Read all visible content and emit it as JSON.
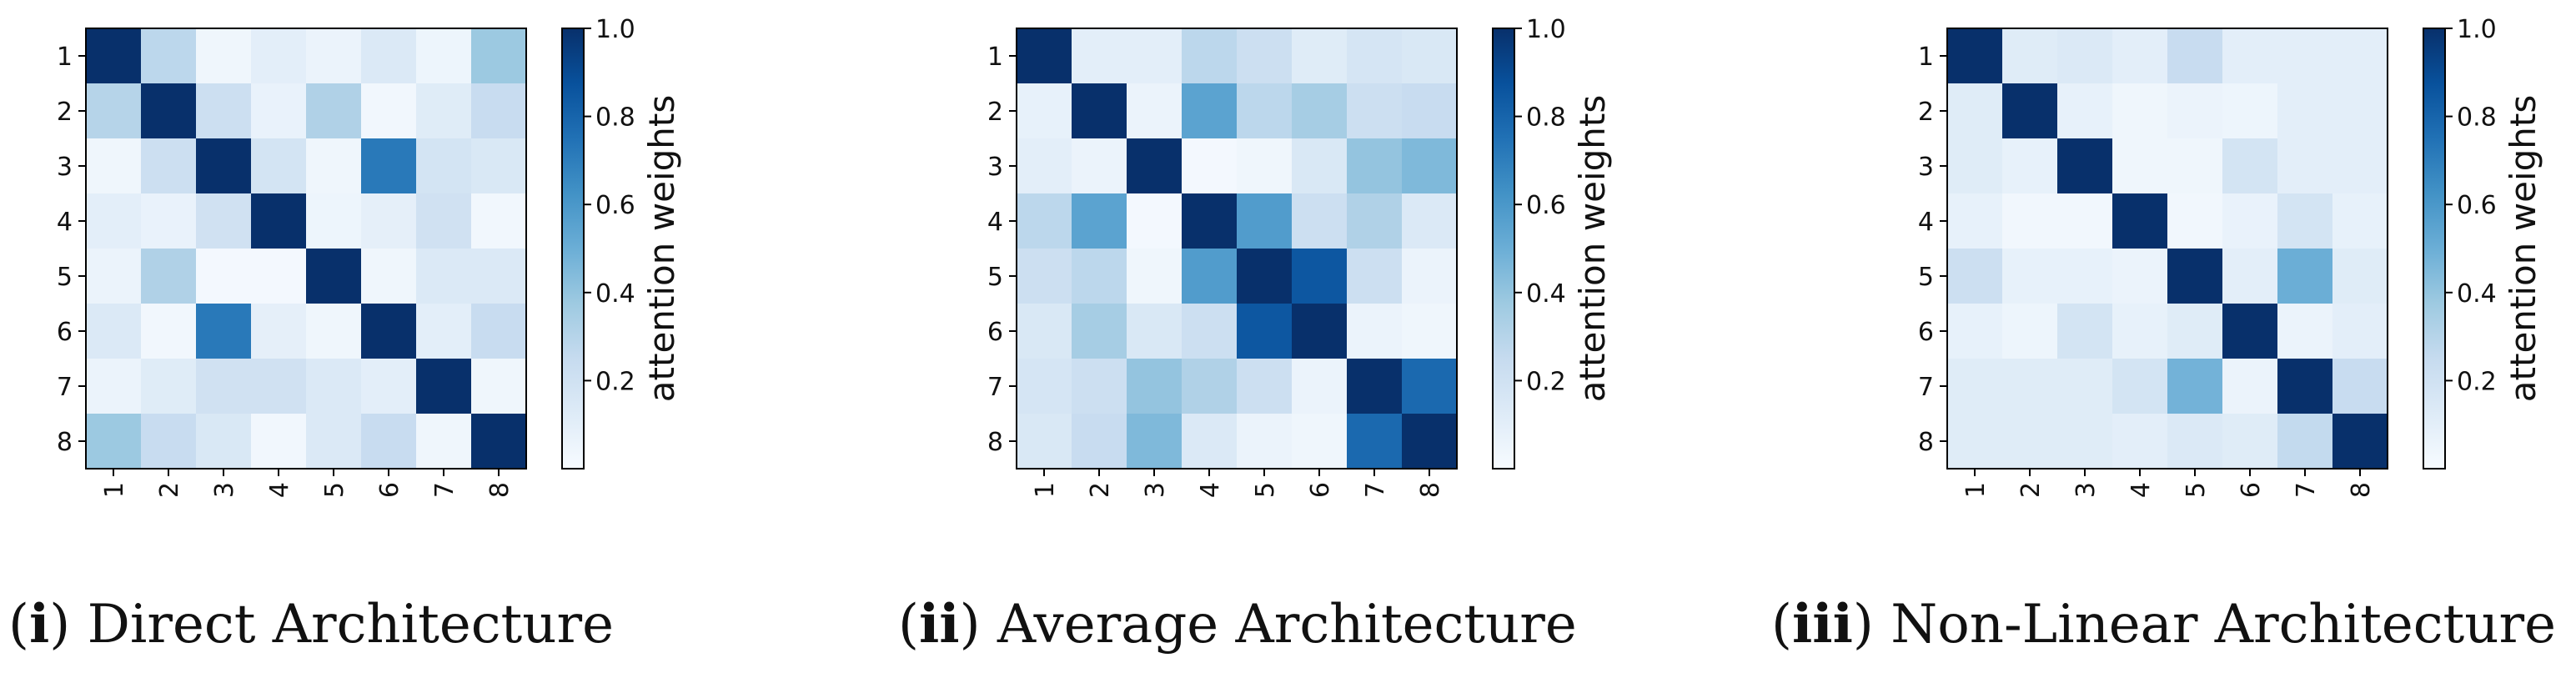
{
  "chart_data": [
    {
      "type": "heatmap",
      "caption_prefix": "i",
      "caption_title": "Direct Architecture",
      "x_tick_labels": [
        "1",
        "2",
        "3",
        "4",
        "5",
        "6",
        "7",
        "8"
      ],
      "y_tick_labels": [
        "1",
        "2",
        "3",
        "4",
        "5",
        "6",
        "7",
        "8"
      ],
      "colorbar": {
        "label": "attention weights",
        "ticks": [
          "0.2",
          "0.4",
          "0.6",
          "0.8",
          "1.0"
        ],
        "range": [
          0,
          1
        ]
      },
      "matrix": [
        [
          1.0,
          0.28,
          0.04,
          0.1,
          0.06,
          0.14,
          0.05,
          0.38
        ],
        [
          0.3,
          1.0,
          0.22,
          0.07,
          0.32,
          0.03,
          0.12,
          0.24
        ],
        [
          0.04,
          0.22,
          1.0,
          0.18,
          0.04,
          0.72,
          0.18,
          0.15
        ],
        [
          0.1,
          0.07,
          0.2,
          1.0,
          0.05,
          0.09,
          0.2,
          0.03
        ],
        [
          0.06,
          0.32,
          0.02,
          0.02,
          1.0,
          0.04,
          0.14,
          0.14
        ],
        [
          0.14,
          0.03,
          0.72,
          0.09,
          0.04,
          1.0,
          0.1,
          0.24
        ],
        [
          0.06,
          0.12,
          0.2,
          0.2,
          0.14,
          0.1,
          1.0,
          0.04
        ],
        [
          0.38,
          0.24,
          0.15,
          0.03,
          0.14,
          0.24,
          0.04,
          1.0
        ]
      ]
    },
    {
      "type": "heatmap",
      "caption_prefix": "ii",
      "caption_title": "Average Architecture",
      "x_tick_labels": [
        "1",
        "2",
        "3",
        "4",
        "5",
        "6",
        "7",
        "8"
      ],
      "y_tick_labels": [
        "1",
        "2",
        "3",
        "4",
        "5",
        "6",
        "7",
        "8"
      ],
      "colorbar": {
        "label": "attention weights",
        "ticks": [
          "0.2",
          "0.4",
          "0.6",
          "0.8",
          "1.0"
        ],
        "range": [
          0,
          1
        ]
      },
      "matrix": [
        [
          1.0,
          0.1,
          0.1,
          0.28,
          0.22,
          0.12,
          0.17,
          0.15
        ],
        [
          0.08,
          1.0,
          0.06,
          0.55,
          0.28,
          0.35,
          0.22,
          0.24
        ],
        [
          0.1,
          0.06,
          1.0,
          0.02,
          0.04,
          0.15,
          0.4,
          0.45
        ],
        [
          0.28,
          0.55,
          0.02,
          1.0,
          0.58,
          0.22,
          0.32,
          0.14
        ],
        [
          0.22,
          0.28,
          0.04,
          0.58,
          1.0,
          0.85,
          0.22,
          0.06
        ],
        [
          0.15,
          0.35,
          0.15,
          0.22,
          0.85,
          1.0,
          0.06,
          0.04
        ],
        [
          0.17,
          0.22,
          0.4,
          0.32,
          0.22,
          0.06,
          1.0,
          0.78
        ],
        [
          0.15,
          0.24,
          0.45,
          0.14,
          0.06,
          0.04,
          0.78,
          1.0
        ]
      ]
    },
    {
      "type": "heatmap",
      "caption_prefix": "iii",
      "caption_title": "Non-Linear Architecture",
      "x_tick_labels": [
        "1",
        "2",
        "3",
        "4",
        "5",
        "6",
        "7",
        "8"
      ],
      "y_tick_labels": [
        "1",
        "2",
        "3",
        "4",
        "5",
        "6",
        "7",
        "8"
      ],
      "colorbar": {
        "label": "attention weights",
        "ticks": [
          "0.2",
          "0.4",
          "0.6",
          "0.8",
          "1.0"
        ],
        "range": [
          0,
          1
        ]
      },
      "matrix": [
        [
          1.0,
          0.12,
          0.14,
          0.1,
          0.24,
          0.1,
          0.1,
          0.1
        ],
        [
          0.12,
          1.0,
          0.08,
          0.04,
          0.06,
          0.05,
          0.1,
          0.1
        ],
        [
          0.12,
          0.08,
          1.0,
          0.04,
          0.04,
          0.18,
          0.1,
          0.1
        ],
        [
          0.08,
          0.03,
          0.03,
          1.0,
          0.03,
          0.07,
          0.18,
          0.08
        ],
        [
          0.22,
          0.08,
          0.08,
          0.06,
          1.0,
          0.1,
          0.5,
          0.12
        ],
        [
          0.08,
          0.05,
          0.18,
          0.08,
          0.12,
          1.0,
          0.06,
          0.1
        ],
        [
          0.12,
          0.12,
          0.12,
          0.18,
          0.48,
          0.06,
          1.0,
          0.24
        ],
        [
          0.12,
          0.12,
          0.12,
          0.1,
          0.14,
          0.12,
          0.26,
          1.0
        ]
      ]
    }
  ]
}
